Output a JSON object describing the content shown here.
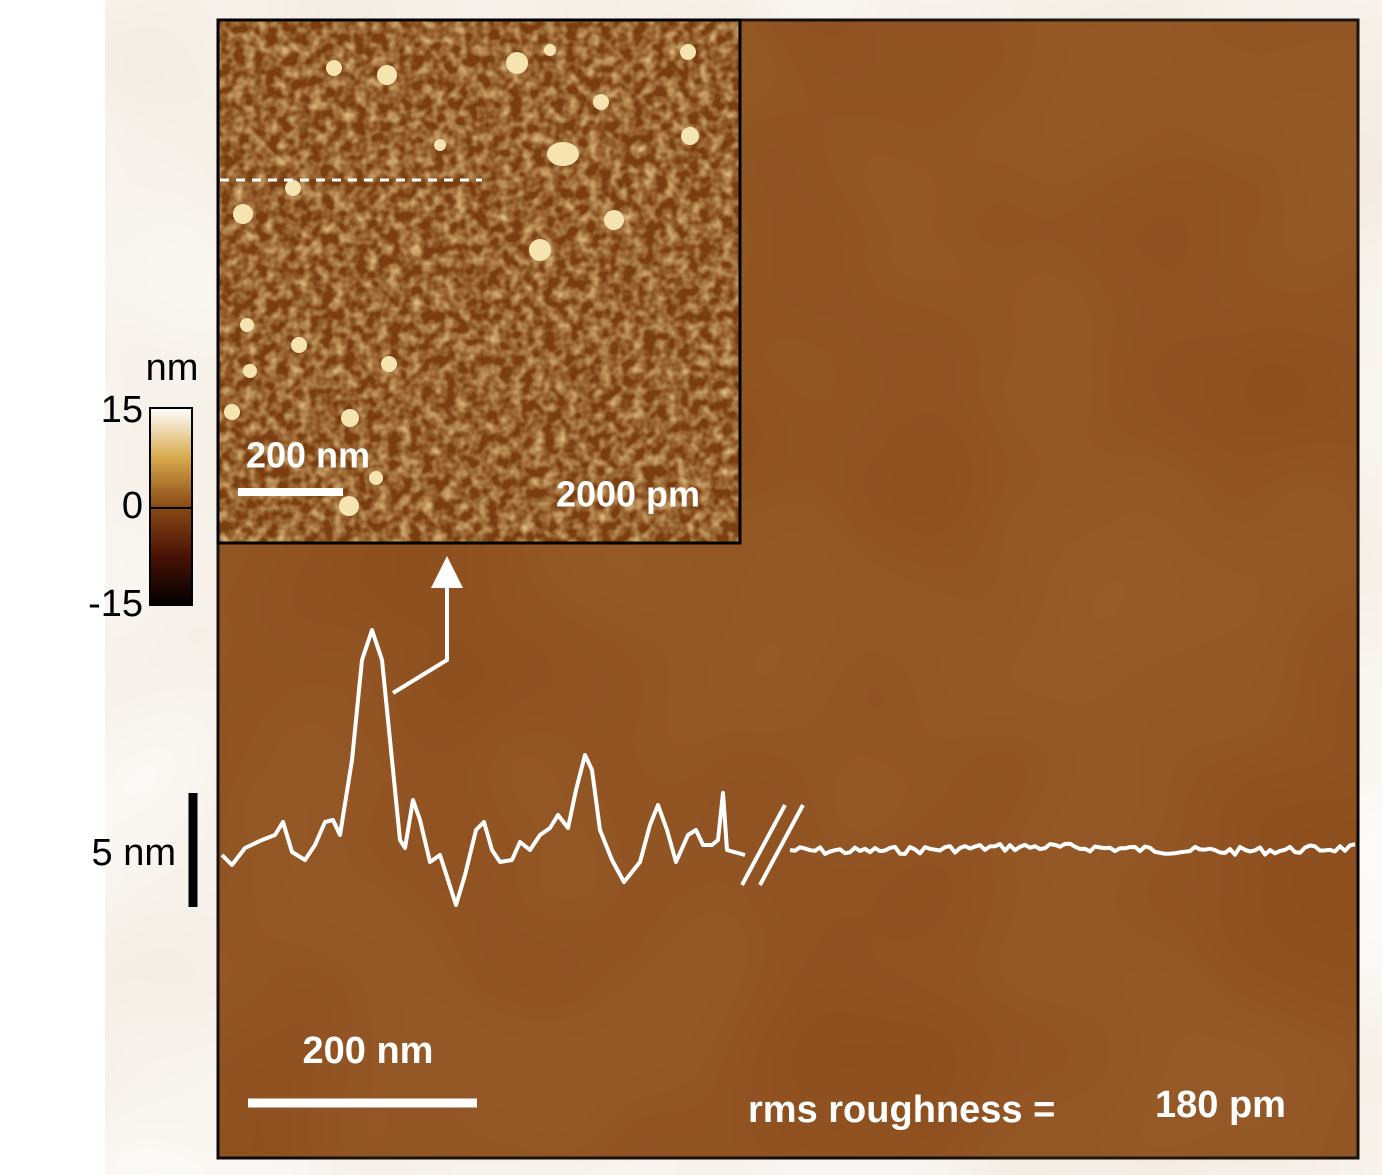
{
  "colorbar": {
    "unit": "nm",
    "ticks": [
      "15",
      "0",
      "-15"
    ]
  },
  "inset": {
    "scale_bar": "200 nm",
    "z_range": "2000 pm"
  },
  "profile": {
    "scale_bar": "5 nm"
  },
  "main": {
    "scale_bar": "200 nm",
    "roughness_label": "rms roughness =",
    "roughness_value": "180 pm"
  }
}
